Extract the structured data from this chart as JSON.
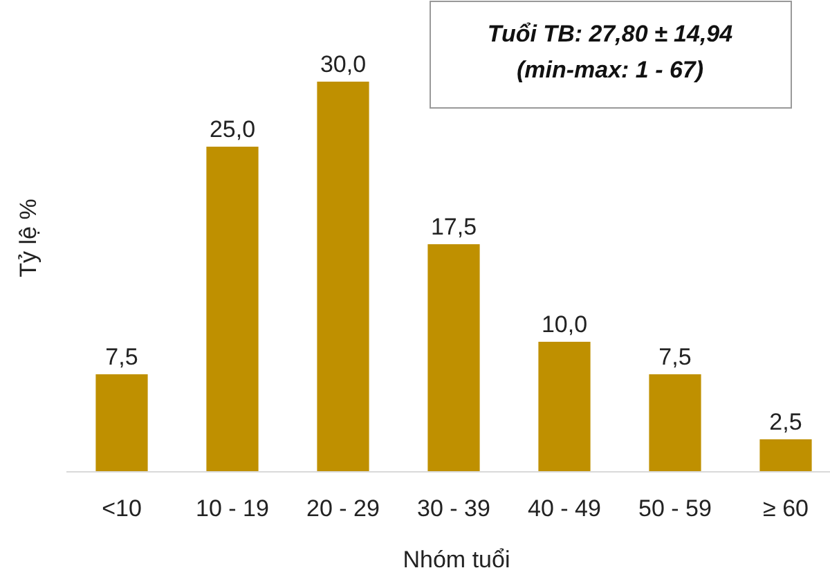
{
  "chart_data": {
    "type": "bar",
    "xlabel": "Nhóm tuổi",
    "ylabel": "Tỷ lệ %",
    "categories": [
      "<10",
      "10 - 19",
      "20 - 29",
      "30 - 39",
      "40 - 49",
      "50 - 59",
      "≥ 60"
    ],
    "values": [
      7.5,
      25.0,
      30.0,
      17.5,
      10.0,
      7.5,
      2.5
    ],
    "color": "#bf9000",
    "value_labels": [
      "7,5",
      "25,0",
      "30,0",
      "17,5",
      "10,0",
      "7,5",
      "2,5"
    ],
    "annotations": [
      "Tuổi TB: 27,80 ± 14,94",
      "(min-max: 1 - 67)"
    ]
  }
}
